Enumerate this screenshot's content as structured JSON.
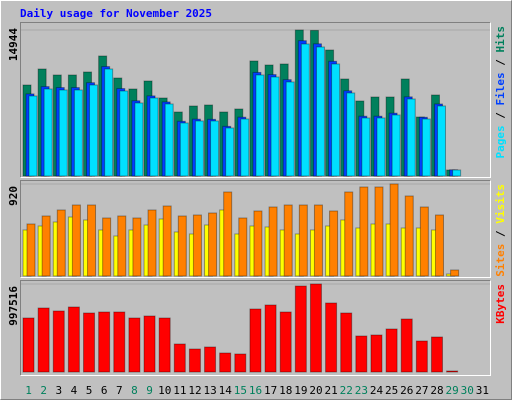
{
  "chart_data": [
    {
      "type": "bar",
      "title": "Daily usage for November 2025",
      "legend_separator": " / ",
      "ylim": [
        0,
        14944
      ],
      "yticks": [
        14944
      ],
      "series": [
        {
          "name": "Pages",
          "color": "#00e0ff",
          "values": [
            8188,
            8905,
            8803,
            8803,
            9314,
            10952,
            8700,
            7472,
            7984,
            7370,
            5425,
            5630,
            5630,
            4913,
            5834,
            10338,
            10133,
            9622,
            13511,
            13204,
            11464,
            8496,
            5937,
            5937,
            6244,
            7881,
            5834,
            7165,
            614,
            null,
            null
          ]
        },
        {
          "name": "Files",
          "color": "#0040ff",
          "values": [
            8400,
            9150,
            9050,
            9050,
            9550,
            11200,
            8950,
            7700,
            8200,
            7580,
            5600,
            5820,
            5800,
            5080,
            6020,
            10600,
            10380,
            9860,
            13850,
            13530,
            11740,
            8720,
            6120,
            6120,
            6430,
            8100,
            6010,
            7370,
            630,
            null,
            null
          ]
        },
        {
          "name": "Hits",
          "color": "#00805c",
          "values": [
            9314,
            10952,
            10338,
            10338,
            10645,
            12283,
            10031,
            8905,
            9724,
            7984,
            6551,
            7165,
            7267,
            6551,
            6858,
            11771,
            11361,
            11464,
            14944,
            14900,
            12897,
            9929,
            7677,
            8086,
            8086,
            9929,
            6039,
            8291,
            614,
            null,
            null
          ]
        }
      ]
    },
    {
      "type": "bar",
      "legend_separator": " / ",
      "ylim": [
        0,
        920
      ],
      "yticks": [
        920
      ],
      "series": [
        {
          "name": "Sites",
          "color": "#ff8000",
          "values": [
            520,
            600,
            660,
            710,
            710,
            580,
            600,
            580,
            660,
            700,
            600,
            610,
            630,
            840,
            580,
            650,
            690,
            710,
            710,
            710,
            650,
            840,
            890,
            890,
            920,
            800,
            690,
            610,
            60,
            null,
            null
          ]
        },
        {
          "name": "Visits",
          "color": "#ffff00",
          "values": [
            460,
            500,
            540,
            590,
            560,
            460,
            400,
            460,
            510,
            570,
            440,
            420,
            510,
            660,
            420,
            500,
            490,
            460,
            420,
            460,
            500,
            560,
            480,
            520,
            520,
            480,
            480,
            460,
            20,
            null,
            null
          ]
        }
      ]
    },
    {
      "type": "bar",
      "legend_separator": " / ",
      "ylim": [
        0,
        997516
      ],
      "yticks": [
        997516
      ],
      "categories": [
        "1",
        "2",
        "3",
        "4",
        "5",
        "6",
        "7",
        "8",
        "9",
        "10",
        "11",
        "12",
        "13",
        "14",
        "15",
        "16",
        "17",
        "18",
        "19",
        "20",
        "21",
        "22",
        "23",
        "24",
        "25",
        "26",
        "27",
        "28",
        "29",
        "30",
        "31"
      ],
      "category_colors": [
        "#00805c",
        "#00805c",
        "#000000",
        "#000000",
        "#000000",
        "#000000",
        "#000000",
        "#00805c",
        "#00805c",
        "#000000",
        "#000000",
        "#000000",
        "#000000",
        "#000000",
        "#00805c",
        "#00805c",
        "#000000",
        "#000000",
        "#000000",
        "#000000",
        "#000000",
        "#00805c",
        "#00805c",
        "#000000",
        "#000000",
        "#000000",
        "#000000",
        "#000000",
        "#00805c",
        "#00805c",
        "#000000"
      ],
      "series": [
        {
          "name": "KBytes",
          "color": "#ff0000",
          "values": [
            612100,
            725440,
            691435,
            736775,
            668765,
            680100,
            680100,
            612090,
            634760,
            612090,
            317380,
            260705,
            283375,
            215365,
            204030,
            714105,
            759445,
            680100,
            974810,
            997516,
            782115,
            668765,
            408060,
            419395,
            487405,
            600755,
            351385,
            396725,
            11335,
            null,
            null
          ]
        }
      ]
    }
  ]
}
